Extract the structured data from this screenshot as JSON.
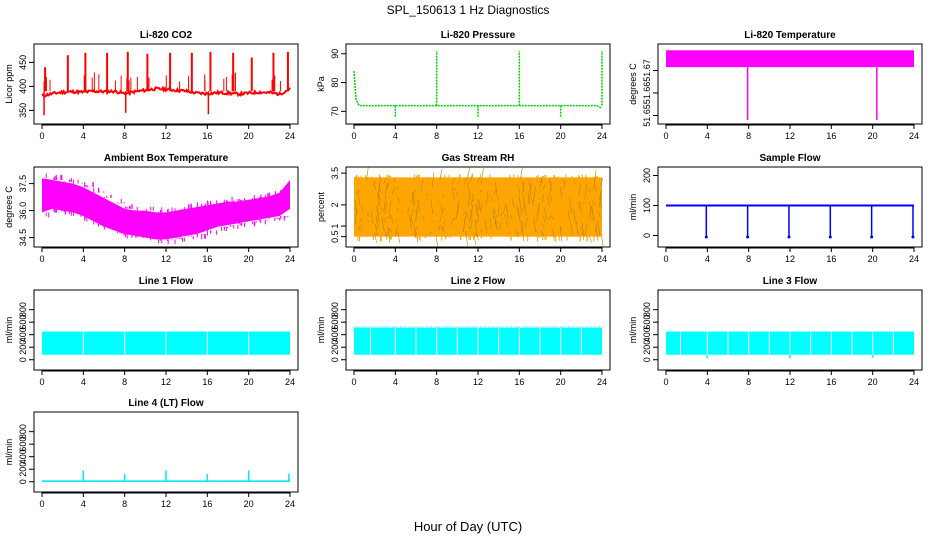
{
  "figure": {
    "title": "SPL_150613  1 Hz Diagnostics",
    "xlabel": "Hour of Day (UTC)"
  },
  "chart_data": [
    {
      "id": "co2",
      "type": "line",
      "title": "Li-820 CO2",
      "ylabel": "Licor ppm",
      "color": "#ff0000",
      "xlim": [
        0,
        24
      ],
      "xticks": [
        0,
        4,
        8,
        12,
        16,
        20,
        24
      ],
      "ylim": [
        330,
        480
      ],
      "yticks": [
        350,
        400,
        450
      ],
      "x": [
        0,
        1,
        2,
        3,
        4,
        5,
        6,
        7,
        8,
        9,
        10,
        11,
        12,
        13,
        14,
        15,
        16,
        17,
        18,
        19,
        20,
        21,
        22,
        23,
        24
      ],
      "y": [
        380,
        385,
        388,
        389,
        388,
        390,
        389,
        390,
        385,
        389,
        392,
        395,
        394,
        392,
        390,
        386,
        385,
        387,
        386,
        384,
        386,
        388,
        387,
        384,
        395
      ],
      "spikes": [
        {
          "x": 0.3,
          "y": 440
        },
        {
          "x": 2.5,
          "y": 465
        },
        {
          "x": 4.2,
          "y": 470
        },
        {
          "x": 6.3,
          "y": 470
        },
        {
          "x": 8.3,
          "y": 472
        },
        {
          "x": 10.2,
          "y": 468
        },
        {
          "x": 12.4,
          "y": 470
        },
        {
          "x": 14.5,
          "y": 470
        },
        {
          "x": 16.3,
          "y": 472
        },
        {
          "x": 18.5,
          "y": 470
        },
        {
          "x": 20.3,
          "y": 460
        },
        {
          "x": 22.4,
          "y": 470
        },
        {
          "x": 23.8,
          "y": 472
        }
      ],
      "dips": [
        {
          "x": 0.2,
          "y": 340
        },
        {
          "x": 8.1,
          "y": 345
        },
        {
          "x": 16.1,
          "y": 342
        }
      ]
    },
    {
      "id": "pressure",
      "type": "line",
      "title": "Li-820 Pressure",
      "ylabel": "kPa",
      "color": "#00cc00",
      "xlim": [
        0,
        24
      ],
      "xticks": [
        0,
        4,
        8,
        12,
        16,
        20,
        24
      ],
      "ylim": [
        67,
        92
      ],
      "yticks": [
        70,
        80,
        90
      ],
      "x": [
        0,
        0.2,
        0.5,
        2,
        4,
        6,
        8,
        10,
        12,
        14,
        16,
        18,
        20,
        22,
        23.5,
        24
      ],
      "y": [
        84,
        74,
        72,
        72,
        72,
        72,
        72,
        72,
        72,
        72,
        72,
        72,
        72,
        72,
        72,
        71
      ],
      "spikes": [
        {
          "x": 8,
          "y": 91
        },
        {
          "x": 16,
          "y": 91
        },
        {
          "x": 24,
          "y": 91
        }
      ],
      "dips": [
        {
          "x": 4,
          "y": 68
        },
        {
          "x": 12,
          "y": 68
        },
        {
          "x": 20,
          "y": 68
        }
      ]
    },
    {
      "id": "temp",
      "type": "band",
      "title": "Li-820 Temperature",
      "ylabel": "degrees C",
      "color": "#ff00ff",
      "xlim": [
        0,
        24
      ],
      "xticks": [
        0,
        4,
        8,
        12,
        16,
        20,
        24
      ],
      "ylim": [
        51.648,
        51.68
      ],
      "yticks": [
        51.65,
        51.66,
        51.67
      ],
      "band": {
        "low": 51.6715,
        "high": 51.679
      },
      "dips": [
        {
          "x": 7.9,
          "y": 51.648
        },
        {
          "x": 20.4,
          "y": 51.648
        }
      ]
    },
    {
      "id": "ambient",
      "type": "band",
      "title": "Ambient Box Temperature",
      "ylabel": "degrees C",
      "color": "#ff00ff",
      "xlim": [
        0,
        24
      ],
      "xticks": [
        0,
        4,
        8,
        12,
        16,
        20,
        24
      ],
      "ylim": [
        34.2,
        38.2
      ],
      "yticks": [
        34.5,
        36.0,
        37.5
      ],
      "x": [
        0,
        1,
        2,
        3,
        4,
        5,
        6,
        7,
        8,
        9,
        10,
        11,
        12,
        13,
        14,
        15,
        16,
        17,
        18,
        19,
        20,
        21,
        22,
        23,
        24
      ],
      "low": [
        35.9,
        36.1,
        36.0,
        35.9,
        35.7,
        35.4,
        35.1,
        34.9,
        34.7,
        34.6,
        34.5,
        34.4,
        34.4,
        34.5,
        34.6,
        34.7,
        34.9,
        35.1,
        35.2,
        35.3,
        35.4,
        35.5,
        35.6,
        35.7,
        36.1
      ],
      "high": [
        37.8,
        37.7,
        37.6,
        37.5,
        37.3,
        37.0,
        36.7,
        36.4,
        36.1,
        36.0,
        36.0,
        35.9,
        35.9,
        36.0,
        36.1,
        36.2,
        36.3,
        36.4,
        36.5,
        36.5,
        36.6,
        36.7,
        36.8,
        37.0,
        37.7
      ]
    },
    {
      "id": "rh",
      "type": "band",
      "title": "Gas Stream RH",
      "ylabel": "percent",
      "color": "#ffa500",
      "color2": "#b8860b",
      "xlim": [
        0,
        24
      ],
      "xticks": [
        0,
        4,
        8,
        12,
        16,
        20,
        24
      ],
      "ylim": [
        0.2,
        3.6
      ],
      "yticks": [
        0.5,
        1.0,
        2.0,
        3.5
      ],
      "band": {
        "low": 0.5,
        "high": 3.3
      }
    },
    {
      "id": "sample",
      "type": "line",
      "title": "Sample Flow",
      "ylabel": "ml/min",
      "color": "#0000ff",
      "xlim": [
        0,
        24
      ],
      "xticks": [
        0,
        4,
        8,
        12,
        16,
        20,
        24
      ],
      "ylim": [
        -25,
        215
      ],
      "yticks": [
        0,
        100,
        200
      ],
      "x": [
        0,
        24
      ],
      "y": [
        100,
        100
      ],
      "dips": [
        {
          "x": 3.9,
          "y": -5
        },
        {
          "x": 7.9,
          "y": -5
        },
        {
          "x": 11.9,
          "y": -5
        },
        {
          "x": 15.9,
          "y": -5
        },
        {
          "x": 19.9,
          "y": -5
        },
        {
          "x": 23.9,
          "y": -5
        }
      ]
    },
    {
      "id": "line1",
      "type": "band",
      "title": "Line 1 Flow",
      "ylabel": "ml/min",
      "color": "#00ffff",
      "xlim": [
        0,
        24
      ],
      "xticks": [
        0,
        4,
        8,
        12,
        16,
        20,
        24
      ],
      "ylim": [
        -100,
        1050
      ],
      "yticks": [
        0,
        200,
        400,
        600,
        800
      ],
      "band": {
        "low": 80,
        "high": 450
      },
      "gaps": [
        4,
        8,
        12,
        16,
        20
      ]
    },
    {
      "id": "line2",
      "type": "band",
      "title": "Line 2 Flow",
      "ylabel": "ml/min",
      "color": "#00ffff",
      "xlim": [
        0,
        24
      ],
      "xticks": [
        0,
        4,
        8,
        12,
        16,
        20,
        24
      ],
      "ylim": [
        -100,
        1050
      ],
      "yticks": [
        0,
        200,
        400,
        600,
        800
      ],
      "band": {
        "low": 80,
        "high": 510
      },
      "gaps": [
        1.6,
        4,
        6,
        8,
        10,
        12,
        14,
        16,
        18,
        20,
        22
      ]
    },
    {
      "id": "line3",
      "type": "band",
      "title": "Line 3 Flow",
      "ylabel": "ml/min",
      "color": "#00ffff",
      "xlim": [
        0,
        24
      ],
      "xticks": [
        0,
        4,
        8,
        12,
        16,
        20,
        24
      ],
      "ylim": [
        -100,
        1050
      ],
      "yticks": [
        0,
        200,
        400,
        600,
        800
      ],
      "band": {
        "low": 80,
        "high": 450
      },
      "gaps": [
        1.4,
        4,
        6,
        8,
        10,
        12,
        14,
        16,
        18,
        20,
        22
      ],
      "dips": [
        {
          "x": 4,
          "y": 20
        },
        {
          "x": 12,
          "y": 20
        },
        {
          "x": 20,
          "y": 30
        }
      ]
    },
    {
      "id": "line4",
      "type": "line",
      "title": "Line 4 (LT) Flow",
      "ylabel": "ml/min",
      "color": "#00e5ee",
      "xlim": [
        0,
        24
      ],
      "xticks": [
        0,
        4,
        8,
        12,
        16,
        20,
        24
      ],
      "ylim": [
        -100,
        1050
      ],
      "yticks": [
        0,
        200,
        400,
        600,
        800
      ],
      "x": [
        0,
        24
      ],
      "y": [
        10,
        10
      ],
      "spikes": [
        {
          "x": 4,
          "y": 180
        },
        {
          "x": 8,
          "y": 120
        },
        {
          "x": 12,
          "y": 180
        },
        {
          "x": 16,
          "y": 120
        },
        {
          "x": 20,
          "y": 180
        },
        {
          "x": 23.9,
          "y": 130
        }
      ]
    }
  ]
}
